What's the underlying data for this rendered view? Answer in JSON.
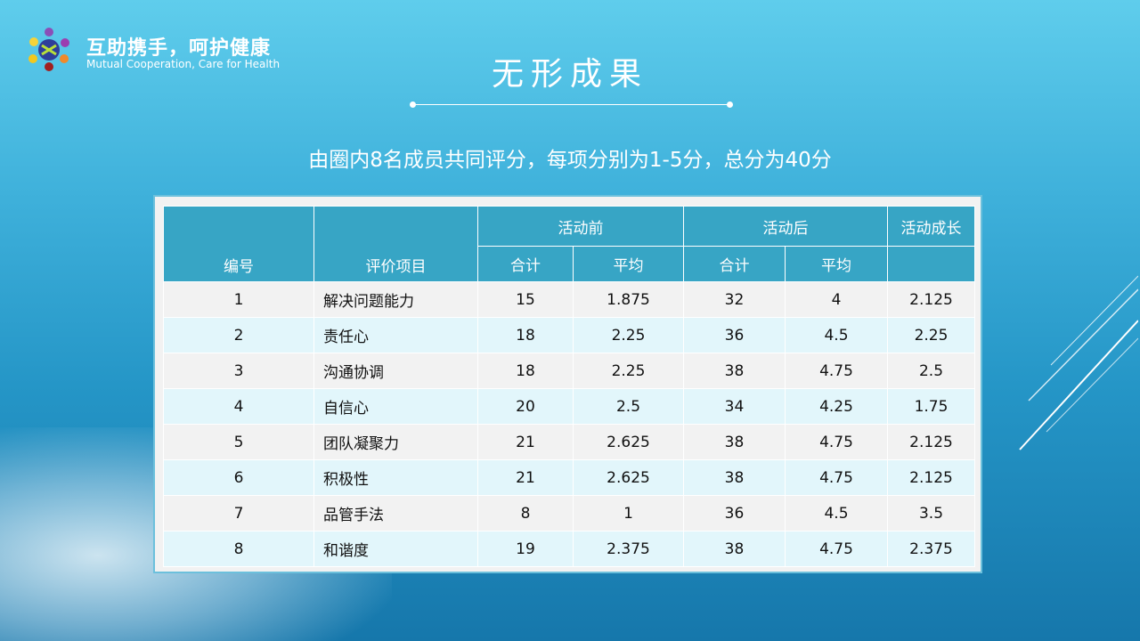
{
  "brand": {
    "name_cn": "互助携手，呵护健康",
    "name_en": "Mutual Cooperation,  Care for Health"
  },
  "title": "无形成果",
  "subtitle": "由圈内8名成员共同评分，每项分别为1-5分，总分为40分",
  "table": {
    "headers": {
      "id": "编号",
      "item": "评价项目",
      "before": "活动前",
      "after": "活动后",
      "growth": "活动成长",
      "total": "合计",
      "avg": "平均"
    },
    "rows": [
      [
        "1",
        "解决问题能力",
        "15",
        "1.875",
        "32",
        "4",
        "2.125"
      ],
      [
        "2",
        "责任心",
        "18",
        "2.25",
        "36",
        "4.5",
        "2.25"
      ],
      [
        "3",
        "沟通协调",
        "18",
        "2.25",
        "38",
        "4.75",
        "2.5"
      ],
      [
        "4",
        "自信心",
        "20",
        "2.5",
        "34",
        "4.25",
        "1.75"
      ],
      [
        "5",
        "团队凝聚力",
        "21",
        "2.625",
        "38",
        "4.75",
        "2.125"
      ],
      [
        "6",
        "积极性",
        "21",
        "2.625",
        "38",
        "4.75",
        "2.125"
      ],
      [
        "7",
        "品管手法",
        "8",
        "1",
        "36",
        "4.5",
        "3.5"
      ],
      [
        "8",
        "和谐度",
        "19",
        "2.375",
        "38",
        "4.75",
        "2.375"
      ]
    ]
  },
  "colors": {
    "header": "#37a5c5",
    "row_alt": "#e2f6fb"
  }
}
